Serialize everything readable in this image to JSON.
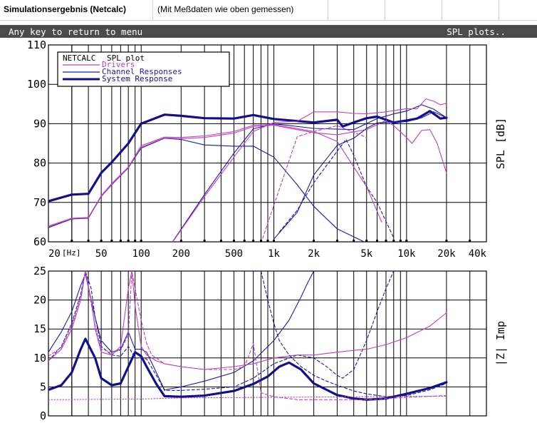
{
  "window": {
    "title": "Simulationsergebnis (Netcalc)",
    "subtitle": "(Mit Meßdaten wie oben gemessen)"
  },
  "menu_bar": {
    "left_text": "Any key to return to menu",
    "right_text": "SPL plots.."
  },
  "colors": {
    "drivers": "#c040c0",
    "channels": "#1a1aa8",
    "system": "#10108c",
    "menu_bar_bg": "#4b4b4b"
  },
  "chart_data": [
    {
      "type": "line",
      "title": "SPL plot",
      "ylabel": "SPL [dB]",
      "xunit": "[Hz]",
      "xscale": "log",
      "xlim": [
        20,
        40000
      ],
      "ylim": [
        60,
        110
      ],
      "grid": true,
      "legend_position": "top-left",
      "legend": {
        "header": "NETCALC",
        "title": "SPL plot",
        "items": [
          "Drivers",
          "Channel Responses",
          "System Response"
        ]
      },
      "x_tick_labels": [
        "20",
        "50",
        "100",
        "200",
        "500",
        "1k",
        "2k",
        "5k",
        "10k",
        "20k",
        "40k"
      ],
      "x_tick_values": [
        20,
        50,
        100,
        200,
        500,
        1000,
        2000,
        5000,
        10000,
        20000,
        40000
      ],
      "y_ticks": [
        60,
        70,
        80,
        90,
        100,
        110
      ],
      "series": [
        {
          "role": "system",
          "x": [
            20,
            30,
            40,
            50,
            60,
            80,
            100,
            150,
            200,
            300,
            500,
            700,
            1000,
            2000,
            3000,
            3300,
            4000,
            5000,
            6000,
            7000,
            8000,
            10000,
            12000,
            15000,
            18000,
            20000
          ],
          "values": [
            70.3,
            72,
            72.2,
            77.5,
            80.2,
            85,
            90,
            92.3,
            92,
            91.4,
            91.3,
            92.2,
            91.2,
            90.3,
            91,
            89.3,
            90.3,
            91.4,
            91.8,
            91,
            90.3,
            90.8,
            91.3,
            93.2,
            91.3,
            91.5
          ]
        },
        {
          "role": "channel",
          "x": [
            20,
            30,
            40,
            50,
            60,
            80,
            100,
            150,
            200,
            300,
            500,
            700,
            1000,
            1500,
            2000,
            3000,
            5000,
            7000
          ],
          "values": [
            63.6,
            65.8,
            66,
            71.5,
            74.5,
            78.8,
            83.8,
            86.3,
            86,
            84.6,
            84.3,
            84.3,
            81.5,
            74.5,
            69,
            63.3,
            59.7,
            57
          ]
        },
        {
          "role": "channel",
          "x": [
            150,
            300,
            500,
            700,
            1000,
            2000,
            4000,
            6000,
            8000,
            10000,
            13000,
            16000,
            20000
          ],
          "values": [
            57,
            72,
            82.5,
            88.7,
            90,
            88.8,
            88.5,
            91.3,
            92.5,
            93.2,
            94.8,
            93.7,
            91.5
          ]
        },
        {
          "role": "driver",
          "solid": true,
          "x": [
            20,
            30,
            40,
            50,
            60,
            80,
            100,
            150,
            200,
            300,
            500,
            700,
            1000,
            2000,
            3000,
            5000,
            7000,
            8000,
            10000,
            11000,
            13000,
            15000,
            17000,
            20000
          ],
          "values": [
            64,
            66,
            66.2,
            71.7,
            74.8,
            79,
            84,
            86.4,
            86.2,
            86.5,
            87.6,
            89.3,
            89.6,
            87.7,
            87.2,
            88.5,
            90.8,
            89.5,
            86.5,
            85,
            88.3,
            88.5,
            85,
            77.5
          ]
        },
        {
          "role": "driver",
          "solid": false,
          "x": [
            20,
            30,
            40,
            50,
            60,
            80,
            100,
            150,
            200,
            300,
            500,
            700,
            1000,
            2000,
            3000,
            5000,
            6500
          ],
          "values": [
            63.8,
            65.9,
            66.1,
            71.6,
            74.6,
            78.9,
            84.4,
            86.6,
            86.5,
            86.9,
            88,
            89.6,
            89.8,
            88,
            85.5,
            74,
            65
          ]
        },
        {
          "role": "driver",
          "solid": false,
          "x": [
            150,
            300,
            500,
            700,
            1000,
            1500,
            2000,
            3000,
            4000,
            5000,
            7000,
            10000,
            12000,
            14000,
            16000,
            18000,
            20000
          ],
          "values": [
            57,
            71.5,
            81.5,
            88,
            90.3,
            90.6,
            93,
            93,
            92.6,
            92.5,
            93,
            93.8,
            93.8,
            96.3,
            95.7,
            94.8,
            95.2
          ]
        },
        {
          "role": "channel",
          "x": [
            1000,
            1500,
            2000,
            3000,
            4000,
            5000,
            6000,
            8000,
            10000,
            13000,
            16000,
            20000
          ],
          "values": [
            60.7,
            67.5,
            77,
            84.5,
            86.3,
            88.8,
            90.2,
            90.5,
            90.5,
            91.5,
            93,
            91.5
          ]
        },
        {
          "role": "channel-dashed",
          "x": [
            1100,
            1500,
            2000,
            3000,
            3500,
            4000,
            5000,
            6000,
            8000
          ],
          "values": [
            62.5,
            68,
            75,
            83,
            86,
            82,
            74,
            70,
            61
          ]
        },
        {
          "role": "driver-dashed",
          "x": [
            800,
            1500,
            2000,
            3000,
            5000
          ],
          "values": [
            59.7,
            86.7,
            88,
            89.5,
            86.5
          ]
        }
      ]
    },
    {
      "type": "line",
      "ylabel": "|Z| Imp",
      "xscale": "log",
      "xlim": [
        20,
        40000
      ],
      "ylim": [
        0,
        25
      ],
      "grid": true,
      "y_ticks": [
        0,
        5,
        10,
        15,
        20,
        25
      ],
      "series": [
        {
          "role": "system",
          "x": [
            20,
            25,
            30,
            35,
            38,
            45,
            50,
            60,
            70,
            80,
            90,
            100,
            110,
            130,
            150,
            200,
            300,
            500,
            700,
            900,
            1100,
            1300,
            1600,
            2000,
            3000,
            4000,
            5000,
            7000,
            10000,
            15000,
            20000
          ],
          "values": [
            4.5,
            5.3,
            7.5,
            11.5,
            13.3,
            10,
            6.5,
            5.3,
            5.6,
            8.5,
            11,
            10.3,
            8.5,
            5.5,
            3.4,
            3.3,
            3.5,
            4.3,
            5.5,
            6.8,
            8.5,
            9.2,
            8,
            5.6,
            3.6,
            3,
            2.8,
            3,
            3.8,
            4.8,
            5.8
          ]
        },
        {
          "role": "channel",
          "x": [
            20,
            25,
            30,
            35,
            38,
            45,
            50,
            60,
            70,
            80,
            90,
            100,
            110,
            130,
            150,
            200,
            300,
            500,
            700,
            1000,
            1300,
            1600,
            1800,
            2000
          ],
          "values": [
            11,
            14.5,
            18,
            22.5,
            24.5,
            17,
            13,
            11,
            11.5,
            14.5,
            11.5,
            11.5,
            11,
            7.5,
            4.5,
            5,
            6,
            7.5,
            9.5,
            13,
            16.5,
            20.5,
            23,
            25
          ]
        },
        {
          "role": "channel-dashed",
          "x": [
            20,
            25,
            30,
            35,
            38,
            42,
            45,
            50,
            60,
            70,
            80,
            90,
            100,
            110,
            130,
            150,
            200,
            300,
            500,
            700,
            1000,
            1500,
            2000,
            2500,
            3000,
            3300,
            4000,
            5000,
            6000,
            7000,
            8000
          ],
          "values": [
            9.5,
            12,
            16,
            21,
            25,
            22,
            17,
            12,
            10.5,
            10.3,
            12,
            10,
            10,
            9.8,
            7,
            4.4,
            4.4,
            4.6,
            5,
            6.5,
            9,
            10.5,
            10,
            8.5,
            7,
            6.5,
            8,
            13,
            18,
            22,
            25
          ]
        },
        {
          "role": "driver",
          "solid": true,
          "x": [
            20,
            25,
            30,
            35,
            38,
            42,
            45,
            50,
            60,
            70,
            80,
            85,
            90,
            100,
            110,
            120,
            130,
            150,
            200,
            300,
            500,
            700,
            1000,
            1500,
            2000,
            3000,
            4000,
            5000,
            7000,
            10000,
            15000,
            20000
          ],
          "values": [
            9.5,
            11.5,
            15,
            20,
            25,
            20,
            15,
            11,
            10.5,
            12,
            22,
            25,
            19,
            12,
            10.5,
            10,
            9.5,
            9,
            8.5,
            8,
            8.5,
            9,
            10,
            10.5,
            10.5,
            11,
            11.3,
            11.5,
            12.3,
            13.5,
            15.5,
            17.8
          ]
        },
        {
          "role": "driver-dashed",
          "x": [
            20,
            25,
            30,
            35,
            38,
            45,
            50,
            60,
            70,
            80,
            85,
            100,
            110,
            120,
            130,
            150,
            200,
            300,
            500,
            600,
            650,
            700,
            800,
            1000,
            1500,
            2000,
            3000,
            5000,
            10000,
            20000
          ],
          "values": [
            10.3,
            11.8,
            15.5,
            20.5,
            25,
            15.5,
            11.5,
            11,
            11.3,
            14,
            25,
            16.5,
            12.5,
            10.5,
            10,
            9,
            8.5,
            8,
            8,
            8.5,
            10.5,
            12.5,
            4,
            3.3,
            2.8,
            2.8,
            2.8,
            2.8,
            3.2,
            3.5
          ]
        },
        {
          "role": "driver-dotted",
          "x": [
            20,
            100,
            140,
            150,
            200,
            20000
          ],
          "values": [
            2.8,
            2.9,
            3,
            3,
            3.1,
            3.4
          ]
        },
        {
          "role": "channel-dashed",
          "x": [
            800,
            900,
            1000,
            1100,
            1300,
            1600,
            2000,
            2500,
            3000,
            4000,
            5000,
            7000,
            10000,
            15000,
            20000
          ],
          "values": [
            25,
            20,
            16,
            13,
            10.5,
            8.5,
            7,
            6,
            5.3,
            4.3,
            3.8,
            3.3,
            3.5,
            4.5,
            5.6
          ]
        }
      ]
    }
  ]
}
